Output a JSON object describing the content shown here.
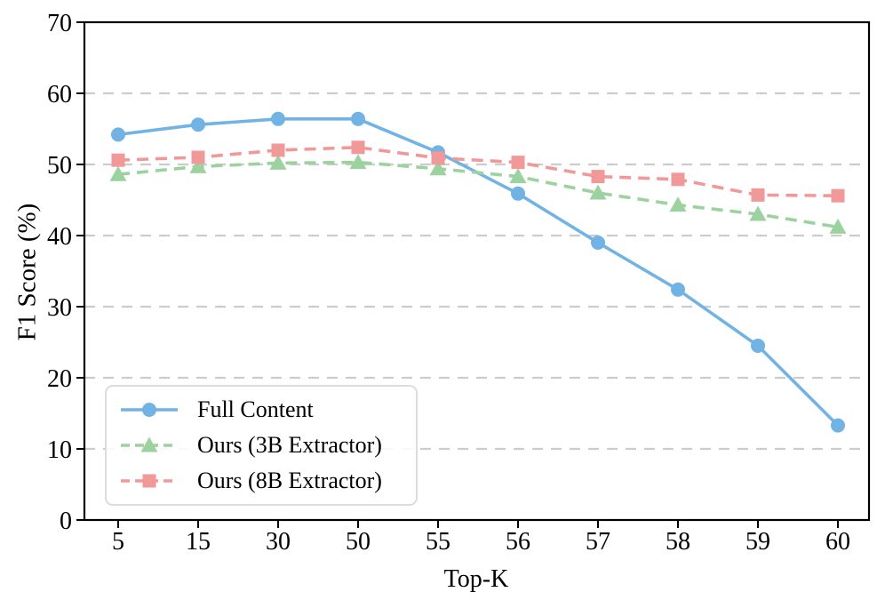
{
  "chart_data": {
    "type": "line",
    "title": "",
    "xlabel": "Top-K",
    "ylabel": "F1 Score (%)",
    "categories": [
      "5",
      "15",
      "30",
      "50",
      "55",
      "56",
      "57",
      "58",
      "59",
      "60"
    ],
    "ylim": [
      0,
      70
    ],
    "yticks": [
      0,
      10,
      20,
      30,
      40,
      50,
      60,
      70
    ],
    "grid": "horizontal-dashed-gridlines-at-10-through-60",
    "legend_position": "lower-left",
    "series": [
      {
        "name": "Full Content",
        "color": "#71B3E4",
        "marker": "circle",
        "line_style": "solid",
        "values": [
          54.2,
          55.6,
          56.4,
          56.4,
          51.7,
          45.9,
          39.0,
          32.4,
          24.5,
          13.3
        ]
      },
      {
        "name": "Ours (3B Extractor)",
        "color": "#9CD29F",
        "marker": "triangle",
        "line_style": "dashed",
        "values": [
          48.6,
          49.7,
          50.2,
          50.3,
          49.4,
          48.3,
          46.0,
          44.3,
          43.0,
          41.2
        ]
      },
      {
        "name": "Ours (8B Extractor)",
        "color": "#F19999",
        "marker": "square",
        "line_style": "dashed",
        "values": [
          50.6,
          51.0,
          52.0,
          52.4,
          50.9,
          50.3,
          48.3,
          47.9,
          45.7,
          45.6
        ]
      }
    ],
    "colors": {
      "grid": "#CCCCCC",
      "axis": "#000000",
      "tick_label": "#000000",
      "legend_border": "#DCDCDC"
    }
  }
}
